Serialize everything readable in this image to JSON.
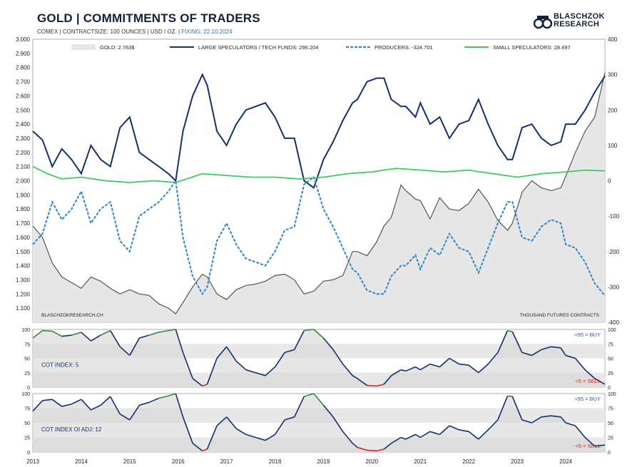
{
  "header": {
    "title": "GOLD | COMMITMENTS OF TRADERS",
    "subtitle": "COMEX | CONTRACTSIZE: 100 OUNCES | USD / OZ. |",
    "fixing": "FIXING: 22.10.2024",
    "brand_line1": "BLASCHZOK",
    "brand_line2": "RESEARCH"
  },
  "colors": {
    "gold_fill": "#e6e6e6",
    "gold_line": "#555555",
    "large_speculators": "#13306b",
    "producers": "#2f86c6",
    "small_speculators": "#3ec962",
    "buy_zone": "#2e8b3e",
    "sell_zone": "#e02020",
    "buy_text": "#2a55c8",
    "sell_text": "#e02020"
  },
  "chart_data": [
    {
      "type": "line",
      "title": "GOLD | COMMITMENTS OF TRADERS",
      "source_note": "BLASCHZOKRESEARCH.CH",
      "unit_note": "THOUSAND  FUTURES CONTRACTS",
      "x_range": [
        2013.0,
        2024.81
      ],
      "x_ticks": [
        "2013",
        "2014",
        "2015",
        "2016",
        "2017",
        "2018",
        "2019",
        "2020",
        "2021",
        "2022",
        "2023",
        "2024"
      ],
      "y_left": {
        "range": [
          1000,
          3000
        ],
        "ticks": [
          "3.000",
          "2.900",
          "2.800",
          "2.700",
          "2.600",
          "2.500",
          "2.400",
          "2.300",
          "2.200",
          "2.100",
          "2.000",
          "1.900",
          "1.800",
          "1.700",
          "1.600",
          "1.500",
          "1.400",
          "1.300",
          "1.200",
          "1.100"
        ]
      },
      "y_right": {
        "range": [
          -400,
          400
        ],
        "ticks": [
          "400",
          "300",
          "200",
          "100",
          "0",
          "-100",
          "-200",
          "-300",
          "-400"
        ]
      },
      "series": [
        {
          "name": "GOLD: 2.763$",
          "axis": "left",
          "style": "area",
          "x": [
            2013.0,
            2013.2,
            2013.4,
            2013.6,
            2013.8,
            2014.0,
            2014.2,
            2014.4,
            2014.6,
            2014.8,
            2015.0,
            2015.2,
            2015.4,
            2015.6,
            2015.8,
            2015.95,
            2016.1,
            2016.3,
            2016.5,
            2016.6,
            2016.8,
            2017.0,
            2017.2,
            2017.4,
            2017.6,
            2017.8,
            2018.0,
            2018.2,
            2018.4,
            2018.6,
            2018.8,
            2019.0,
            2019.2,
            2019.4,
            2019.6,
            2019.7,
            2019.9,
            2020.1,
            2020.25,
            2020.4,
            2020.6,
            2020.7,
            2020.9,
            2021.0,
            2021.2,
            2021.4,
            2021.6,
            2021.8,
            2022.0,
            2022.2,
            2022.4,
            2022.6,
            2022.8,
            2022.9,
            2023.1,
            2023.3,
            2023.5,
            2023.7,
            2023.9,
            2024.0,
            2024.2,
            2024.4,
            2024.6,
            2024.81
          ],
          "y": [
            1680,
            1600,
            1420,
            1320,
            1280,
            1240,
            1320,
            1290,
            1240,
            1200,
            1230,
            1200,
            1190,
            1130,
            1100,
            1060,
            1140,
            1250,
            1340,
            1320,
            1200,
            1160,
            1230,
            1260,
            1270,
            1290,
            1330,
            1340,
            1300,
            1200,
            1220,
            1290,
            1300,
            1330,
            1500,
            1500,
            1470,
            1570,
            1680,
            1740,
            1970,
            1930,
            1870,
            1860,
            1730,
            1880,
            1800,
            1790,
            1840,
            1940,
            1850,
            1720,
            1650,
            1700,
            1920,
            2000,
            1950,
            1930,
            1950,
            2030,
            2200,
            2350,
            2450,
            2763
          ]
        },
        {
          "name": "LARGE SPECULATORS / TECH FUNDS: 296.204",
          "axis": "right",
          "style": "solid",
          "x": [
            2013.0,
            2013.2,
            2013.4,
            2013.6,
            2013.8,
            2014.0,
            2014.2,
            2014.4,
            2014.6,
            2014.8,
            2015.0,
            2015.2,
            2015.4,
            2015.6,
            2015.8,
            2015.95,
            2016.1,
            2016.3,
            2016.5,
            2016.6,
            2016.8,
            2017.0,
            2017.2,
            2017.4,
            2017.6,
            2017.8,
            2018.0,
            2018.2,
            2018.4,
            2018.6,
            2018.8,
            2019.0,
            2019.2,
            2019.4,
            2019.6,
            2019.7,
            2019.9,
            2020.1,
            2020.25,
            2020.4,
            2020.6,
            2020.7,
            2020.9,
            2021.0,
            2021.2,
            2021.4,
            2021.6,
            2021.8,
            2022.0,
            2022.2,
            2022.4,
            2022.6,
            2022.8,
            2022.9,
            2023.1,
            2023.3,
            2023.5,
            2023.7,
            2023.9,
            2024.0,
            2024.2,
            2024.4,
            2024.6,
            2024.81
          ],
          "y": [
            140,
            115,
            40,
            90,
            60,
            20,
            100,
            60,
            40,
            150,
            180,
            80,
            60,
            40,
            20,
            0,
            140,
            240,
            300,
            270,
            140,
            100,
            160,
            200,
            210,
            220,
            180,
            120,
            120,
            0,
            -20,
            60,
            110,
            170,
            220,
            230,
            280,
            290,
            290,
            230,
            210,
            210,
            180,
            220,
            160,
            180,
            120,
            160,
            170,
            230,
            160,
            100,
            60,
            60,
            150,
            160,
            120,
            100,
            110,
            160,
            160,
            200,
            250,
            296
          ]
        },
        {
          "name": "PRODUCERS: -324.701",
          "axis": "right",
          "style": "dashed",
          "x": [
            2013.0,
            2013.2,
            2013.4,
            2013.6,
            2013.8,
            2014.0,
            2014.2,
            2014.4,
            2014.6,
            2014.8,
            2015.0,
            2015.2,
            2015.4,
            2015.6,
            2015.8,
            2015.95,
            2016.1,
            2016.3,
            2016.5,
            2016.6,
            2016.8,
            2017.0,
            2017.2,
            2017.4,
            2017.6,
            2017.8,
            2018.0,
            2018.2,
            2018.4,
            2018.6,
            2018.8,
            2019.0,
            2019.2,
            2019.4,
            2019.6,
            2019.7,
            2019.9,
            2020.1,
            2020.25,
            2020.4,
            2020.6,
            2020.7,
            2020.9,
            2021.0,
            2021.2,
            2021.4,
            2021.6,
            2021.8,
            2022.0,
            2022.2,
            2022.4,
            2022.6,
            2022.8,
            2022.9,
            2023.1,
            2023.3,
            2023.5,
            2023.7,
            2023.9,
            2024.0,
            2024.2,
            2024.4,
            2024.6,
            2024.81
          ],
          "y": [
            -180,
            -150,
            -60,
            -110,
            -80,
            -30,
            -120,
            -80,
            -60,
            -170,
            -200,
            -100,
            -80,
            -60,
            -30,
            0,
            -160,
            -270,
            -320,
            -300,
            -170,
            -120,
            -180,
            -220,
            -230,
            -240,
            -200,
            -140,
            -130,
            -10,
            10,
            -80,
            -130,
            -190,
            -250,
            -260,
            -310,
            -320,
            -320,
            -270,
            -240,
            -240,
            -210,
            -250,
            -190,
            -210,
            -150,
            -190,
            -200,
            -260,
            -190,
            -120,
            -60,
            -60,
            -160,
            -170,
            -130,
            -110,
            -120,
            -180,
            -190,
            -230,
            -290,
            -325
          ]
        },
        {
          "name": "SMALL SPECULATORS: 28.497",
          "axis": "right",
          "style": "solid",
          "x": [
            2013.0,
            2013.3,
            2013.6,
            2014.0,
            2014.5,
            2015.0,
            2015.5,
            2015.95,
            2016.5,
            2017.0,
            2017.5,
            2018.0,
            2018.5,
            2019.0,
            2019.5,
            2020.0,
            2020.5,
            2021.0,
            2021.5,
            2022.0,
            2022.5,
            2023.0,
            2023.5,
            2024.0,
            2024.4,
            2024.81
          ],
          "y": [
            40,
            20,
            5,
            10,
            0,
            -5,
            0,
            -5,
            20,
            15,
            10,
            10,
            5,
            10,
            20,
            25,
            35,
            30,
            25,
            30,
            20,
            10,
            20,
            25,
            30,
            28
          ]
        }
      ]
    },
    {
      "type": "area",
      "title": "COT INDEX: 5",
      "x_range": [
        2013.0,
        2024.81
      ],
      "y_range": [
        0,
        100
      ],
      "y_ticks": [
        "100",
        "75",
        "50",
        "25",
        "0"
      ],
      "buy_label": ">95 = BUY",
      "sell_label": "<5 = SELL",
      "series": [
        {
          "name": "COT INDEX",
          "x": [
            2013.0,
            2013.2,
            2013.4,
            2013.6,
            2013.8,
            2014.0,
            2014.2,
            2014.4,
            2014.6,
            2014.8,
            2015.0,
            2015.2,
            2015.4,
            2015.6,
            2015.8,
            2015.95,
            2016.1,
            2016.3,
            2016.5,
            2016.6,
            2016.8,
            2017.0,
            2017.2,
            2017.4,
            2017.6,
            2017.8,
            2018.0,
            2018.2,
            2018.4,
            2018.6,
            2018.8,
            2019.0,
            2019.2,
            2019.4,
            2019.6,
            2019.7,
            2019.9,
            2020.1,
            2020.25,
            2020.4,
            2020.6,
            2020.7,
            2020.9,
            2021.0,
            2021.2,
            2021.4,
            2021.6,
            2021.8,
            2022.0,
            2022.2,
            2022.4,
            2022.6,
            2022.8,
            2022.9,
            2023.1,
            2023.3,
            2023.5,
            2023.7,
            2023.9,
            2024.0,
            2024.2,
            2024.4,
            2024.6,
            2024.81
          ],
          "y": [
            85,
            98,
            97,
            88,
            90,
            95,
            80,
            90,
            98,
            70,
            55,
            85,
            90,
            95,
            98,
            100,
            60,
            15,
            2,
            5,
            50,
            70,
            45,
            30,
            25,
            20,
            35,
            60,
            65,
            98,
            100,
            85,
            65,
            40,
            20,
            15,
            3,
            2,
            5,
            20,
            30,
            28,
            35,
            30,
            40,
            35,
            50,
            40,
            38,
            25,
            40,
            60,
            98,
            96,
            60,
            55,
            65,
            70,
            68,
            55,
            50,
            30,
            15,
            5
          ]
        }
      ]
    },
    {
      "type": "area",
      "title": "COT INDEX OI ADJ: 12",
      "x_range": [
        2013.0,
        2024.81
      ],
      "y_range": [
        0,
        100
      ],
      "y_ticks": [
        "100",
        "75",
        "50",
        "25",
        "0"
      ],
      "buy_label": ">95 = BUY",
      "sell_label": "<5 = SELL",
      "series": [
        {
          "name": "COT INDEX OI ADJ",
          "x": [
            2013.0,
            2013.2,
            2013.4,
            2013.6,
            2013.8,
            2014.0,
            2014.2,
            2014.4,
            2014.6,
            2014.8,
            2015.0,
            2015.2,
            2015.4,
            2015.6,
            2015.8,
            2015.95,
            2016.1,
            2016.3,
            2016.5,
            2016.6,
            2016.8,
            2017.0,
            2017.2,
            2017.4,
            2017.6,
            2017.8,
            2018.0,
            2018.2,
            2018.4,
            2018.6,
            2018.8,
            2019.0,
            2019.2,
            2019.4,
            2019.6,
            2019.7,
            2019.9,
            2020.1,
            2020.25,
            2020.4,
            2020.6,
            2020.7,
            2020.9,
            2021.0,
            2021.2,
            2021.4,
            2021.6,
            2021.8,
            2022.0,
            2022.2,
            2022.4,
            2022.6,
            2022.8,
            2022.9,
            2023.1,
            2023.3,
            2023.5,
            2023.7,
            2023.9,
            2024.0,
            2024.2,
            2024.4,
            2024.6,
            2024.81
          ],
          "y": [
            70,
            88,
            90,
            78,
            82,
            90,
            72,
            80,
            95,
            65,
            55,
            80,
            85,
            92,
            96,
            100,
            60,
            15,
            2,
            5,
            45,
            60,
            40,
            30,
            25,
            20,
            30,
            55,
            60,
            95,
            100,
            80,
            60,
            35,
            15,
            8,
            3,
            2,
            5,
            15,
            25,
            22,
            30,
            25,
            35,
            30,
            45,
            38,
            35,
            22,
            38,
            55,
            96,
            95,
            55,
            50,
            60,
            62,
            60,
            50,
            45,
            25,
            10,
            12
          ]
        }
      ]
    }
  ]
}
